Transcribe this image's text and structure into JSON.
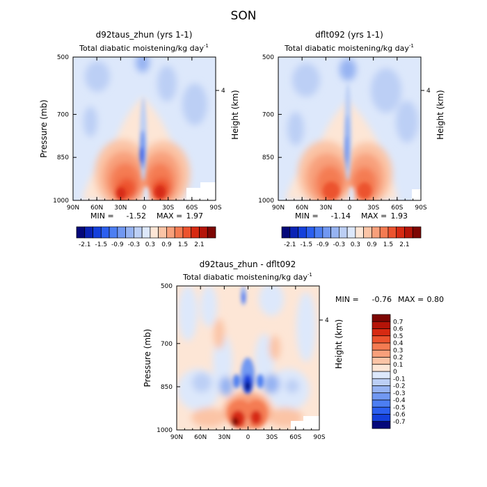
{
  "page_title": "SON",
  "chart_data": [
    {
      "type": "heatmap",
      "title": "d92taus_zhun (yrs 1-1)",
      "subtitle": "Total diabatic moistening/kg day",
      "subtitle_exp": "-1",
      "xlabel": "",
      "ylabel": "Pressure (mb)",
      "y2label": "Height (km)",
      "x_ticks": [
        "90N",
        "60N",
        "30N",
        "0",
        "30S",
        "60S",
        "90S"
      ],
      "x_values": [
        90,
        60,
        30,
        0,
        -30,
        -60,
        -90
      ],
      "y_ticks": [
        "500",
        "700",
        "850",
        "1000"
      ],
      "y_values": [
        500,
        700,
        850,
        1000
      ],
      "y2_ticks": [
        "4"
      ],
      "xlim": [
        90,
        -90
      ],
      "ylim": [
        500,
        1000
      ],
      "min_label": "MIN =",
      "min": "-1.52",
      "max_label": "MAX =",
      "max": "1.97",
      "colorbar": {
        "orientation": "horizontal",
        "labels": [
          "-2.1",
          "-1.5",
          "-0.9",
          "-0.3",
          "0.3",
          "0.9",
          "1.5",
          "2.1"
        ],
        "colors": [
          "#04087a",
          "#0a23b5",
          "#1440dc",
          "#2b5fef",
          "#4c7ef2",
          "#7198f2",
          "#96b3f2",
          "#bccff5",
          "#dde8fb",
          "#fde6d6",
          "#fbc4a6",
          "#f8a07b",
          "#f47b52",
          "#ec532e",
          "#d72a12",
          "#b51408",
          "#7d0603"
        ]
      }
    },
    {
      "type": "heatmap",
      "title": "dflt092 (yrs 1-1)",
      "subtitle": "Total diabatic moistening/kg day",
      "subtitle_exp": "-1",
      "xlabel": "",
      "ylabel": "",
      "y2label": "Height (km)",
      "x_ticks": [
        "90N",
        "60N",
        "30N",
        "0",
        "30S",
        "60S",
        "90S"
      ],
      "x_values": [
        90,
        60,
        30,
        0,
        -30,
        -60,
        -90
      ],
      "y_ticks": [
        "500",
        "700",
        "850",
        "1000"
      ],
      "y_values": [
        500,
        700,
        850,
        1000
      ],
      "y2_ticks": [
        "4"
      ],
      "xlim": [
        90,
        -90
      ],
      "ylim": [
        500,
        1000
      ],
      "min_label": "MIN =",
      "min": "-1.14",
      "max_label": "MAX =",
      "max": "1.93",
      "colorbar": {
        "orientation": "horizontal",
        "labels": [
          "-2.1",
          "-1.5",
          "-0.9",
          "-0.3",
          "0.3",
          "0.9",
          "1.5",
          "2.1"
        ],
        "colors": [
          "#04087a",
          "#0a23b5",
          "#1440dc",
          "#2b5fef",
          "#4c7ef2",
          "#7198f2",
          "#96b3f2",
          "#bccff5",
          "#dde8fb",
          "#fde6d6",
          "#fbc4a6",
          "#f8a07b",
          "#f47b52",
          "#ec532e",
          "#d72a12",
          "#b51408",
          "#7d0603"
        ]
      }
    },
    {
      "type": "heatmap",
      "title": "d92taus_zhun - dflt092",
      "subtitle": "Total diabatic moistening/kg day",
      "subtitle_exp": "-1",
      "xlabel": "",
      "ylabel": "Pressure (mb)",
      "y2label": "Height (km)",
      "x_ticks": [
        "90N",
        "60N",
        "30N",
        "0",
        "30S",
        "60S",
        "90S"
      ],
      "x_values": [
        90,
        60,
        30,
        0,
        -30,
        -60,
        -90
      ],
      "y_ticks": [
        "500",
        "700",
        "850",
        "1000"
      ],
      "y_values": [
        500,
        700,
        850,
        1000
      ],
      "y2_ticks": [
        "4"
      ],
      "xlim": [
        90,
        -90
      ],
      "ylim": [
        500,
        1000
      ],
      "min_label": "MIN =",
      "min": "-0.76",
      "max_label": "MAX =",
      "max": "0.80",
      "colorbar": {
        "orientation": "vertical",
        "labels": [
          "0.7",
          "0.6",
          "0.5",
          "0.4",
          "0.3",
          "0.2",
          "0.1",
          "0",
          "-0.1",
          "-0.2",
          "-0.3",
          "-0.4",
          "-0.5",
          "-0.6",
          "-0.7"
        ],
        "colors": [
          "#7d0603",
          "#b51408",
          "#d72a12",
          "#ec532e",
          "#f47b52",
          "#f8a07b",
          "#fbc4a6",
          "#fde6d6",
          "#dde8fb",
          "#bccff5",
          "#96b3f2",
          "#7198f2",
          "#4c7ef2",
          "#2b5fef",
          "#1440dc",
          "#04087a"
        ]
      }
    }
  ]
}
